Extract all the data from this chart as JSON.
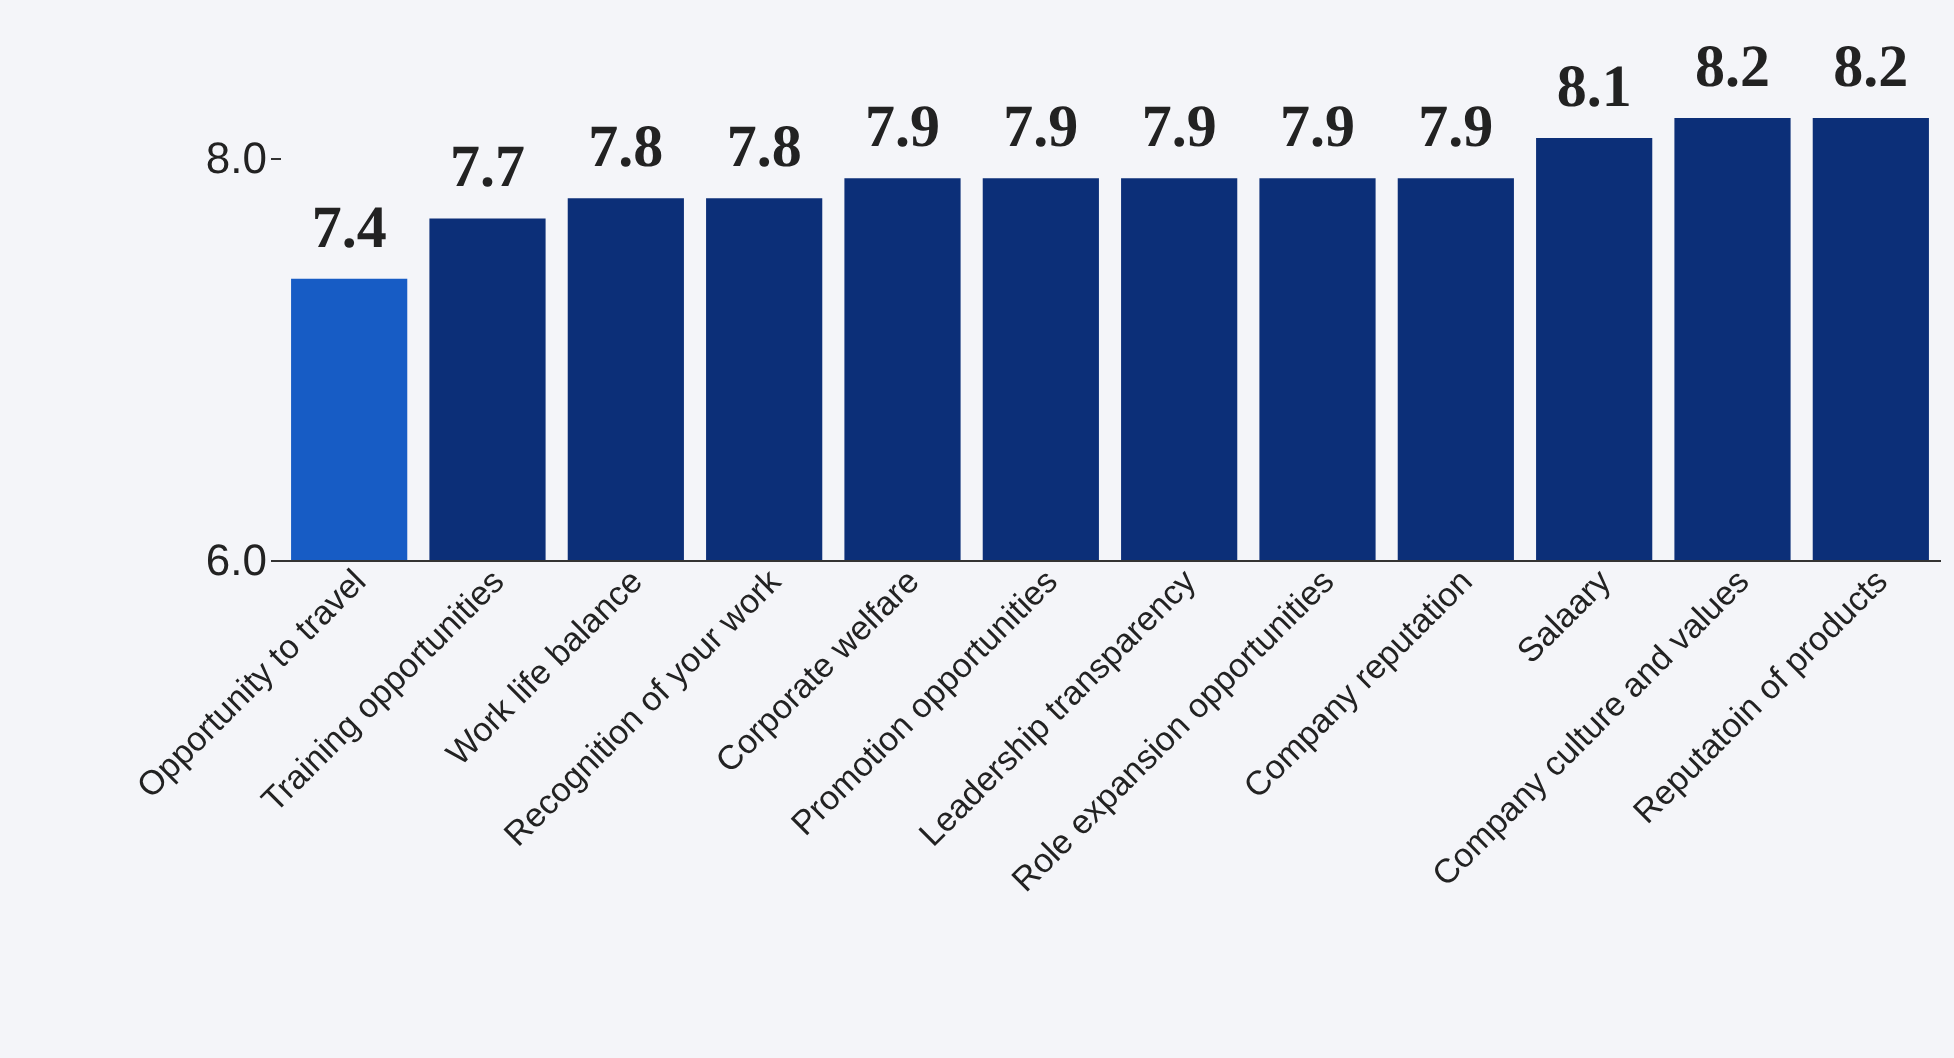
{
  "chart_data": {
    "type": "bar",
    "categories": [
      "Opportunity to travel",
      "Training opportunities",
      "Work life balance",
      "Recognition of your work",
      "Corporate welfare",
      "Promotion opportunities",
      "Leadership transparency",
      "Role expansion opportunities",
      "Company reputation",
      "Salaary",
      "Company culture and values",
      "Reputatoin of products"
    ],
    "values": [
      7.4,
      7.7,
      7.8,
      7.8,
      7.9,
      7.9,
      7.9,
      7.9,
      7.9,
      8.1,
      8.2,
      8.2
    ],
    "colors": [
      "#175cc5",
      "#0c2f78",
      "#0c2f78",
      "#0c2f78",
      "#0c2f78",
      "#0c2f78",
      "#0c2f78",
      "#0c2f78",
      "#0c2f78",
      "#0c2f78",
      "#0c2f78",
      "#0c2f78"
    ],
    "ylim": [
      6,
      8.2
    ],
    "yticks": [
      {
        "value": 6,
        "label": "6.0"
      },
      {
        "value": 8,
        "label": "8.0"
      }
    ],
    "data_labels": true,
    "grid": false
  }
}
